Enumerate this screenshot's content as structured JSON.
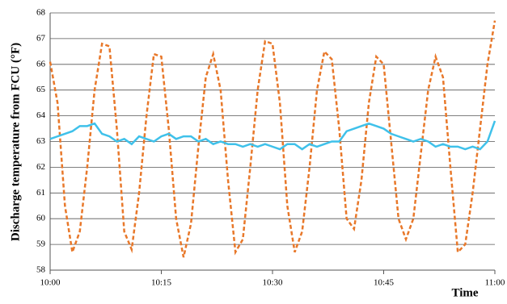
{
  "chart_data": {
    "type": "line",
    "y_label": "Discharge temperature from FCU (°F)",
    "x_label": "Time",
    "x": [
      "10:00",
      "10:01",
      "10:02",
      "10:03",
      "10:04",
      "10:05",
      "10:06",
      "10:07",
      "10:08",
      "10:09",
      "10:10",
      "10:11",
      "10:12",
      "10:13",
      "10:14",
      "10:15",
      "10:16",
      "10:17",
      "10:18",
      "10:19",
      "10:20",
      "10:21",
      "10:22",
      "10:23",
      "10:24",
      "10:25",
      "10:26",
      "10:27",
      "10:28",
      "10:29",
      "10:30",
      "10:31",
      "10:32",
      "10:33",
      "10:34",
      "10:35",
      "10:36",
      "10:37",
      "10:38",
      "10:39",
      "10:40",
      "10:41",
      "10:42",
      "10:43",
      "10:44",
      "10:45",
      "10:46",
      "10:47",
      "10:48",
      "10:49",
      "10:50",
      "10:51",
      "10:52",
      "10:53",
      "10:54",
      "10:55",
      "10:56",
      "10:57",
      "10:58",
      "10:59",
      "11:00"
    ],
    "xticks": [
      "10:00",
      "10:15",
      "10:30",
      "10:45",
      "11:00"
    ],
    "series": [
      {
        "color": "#e8782a",
        "style": "dashed",
        "values": [
          66.1,
          64.5,
          60.5,
          58.7,
          59.5,
          62.0,
          65.0,
          66.8,
          66.7,
          63.5,
          59.5,
          58.8,
          61.0,
          64.0,
          66.4,
          66.3,
          63.5,
          60.0,
          58.5,
          59.8,
          62.8,
          65.5,
          66.4,
          65.0,
          61.5,
          58.7,
          59.2,
          62.0,
          65.0,
          66.9,
          66.8,
          64.5,
          60.5,
          58.7,
          59.5,
          62.0,
          65.0,
          66.5,
          66.2,
          63.5,
          60.0,
          59.6,
          61.5,
          64.5,
          66.3,
          66.0,
          63.0,
          60.0,
          59.2,
          60.0,
          62.5,
          65.0,
          66.3,
          65.5,
          62.0,
          58.7,
          59.0,
          61.0,
          63.5,
          66.0,
          67.7
        ]
      },
      {
        "color": "#3fc1ea",
        "style": "solid",
        "values": [
          63.1,
          63.2,
          63.3,
          63.4,
          63.6,
          63.6,
          63.7,
          63.3,
          63.2,
          63.0,
          63.1,
          62.9,
          63.2,
          63.1,
          63.0,
          63.2,
          63.3,
          63.1,
          63.2,
          63.2,
          63.0,
          63.1,
          62.9,
          63.0,
          62.9,
          62.9,
          62.8,
          62.9,
          62.8,
          62.9,
          62.8,
          62.7,
          62.9,
          62.9,
          62.7,
          62.9,
          62.8,
          62.9,
          63.0,
          63.0,
          63.4,
          63.5,
          63.6,
          63.7,
          63.6,
          63.5,
          63.3,
          63.2,
          63.1,
          63.0,
          63.1,
          63.0,
          62.8,
          62.9,
          62.8,
          62.8,
          62.7,
          62.8,
          62.7,
          63.0,
          63.8
        ]
      }
    ],
    "ylim": [
      58,
      68
    ],
    "yticks": [
      58,
      59,
      60,
      61,
      62,
      63,
      64,
      65,
      66,
      67,
      68
    ],
    "grid": true
  }
}
